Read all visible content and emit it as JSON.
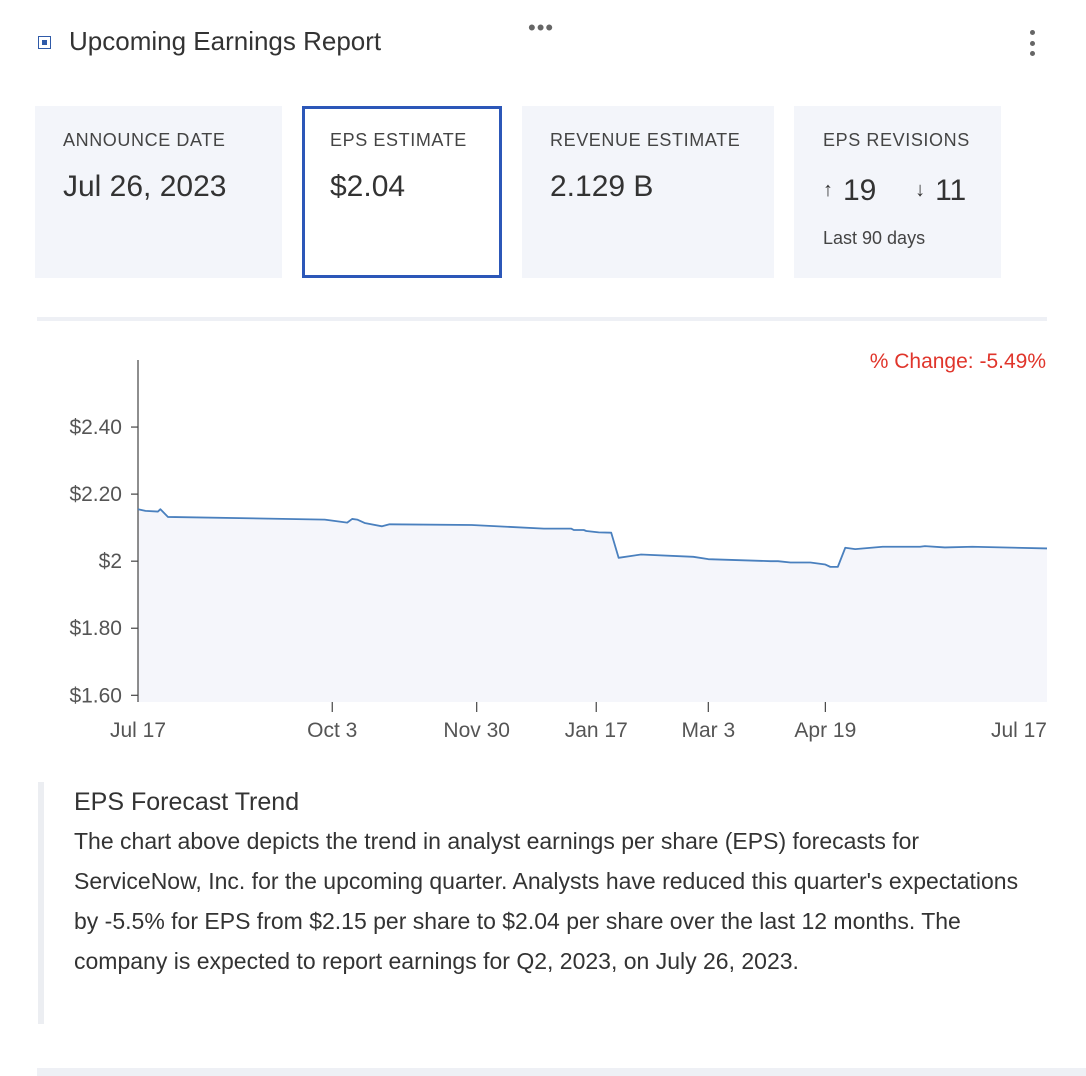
{
  "header": {
    "title": "Upcoming Earnings Report",
    "drag_glyph": "•••",
    "widget_icon": "widget-icon",
    "menu_icon": "kebab-menu-icon"
  },
  "cards": {
    "announce": {
      "label": "ANNOUNCE DATE",
      "value": "Jul 26, 2023"
    },
    "eps": {
      "label": "EPS ESTIMATE",
      "value": "$2.04"
    },
    "revenue": {
      "label": "REVENUE ESTIMATE",
      "value": "2.129 B"
    },
    "revisions": {
      "label": "EPS REVISIONS",
      "up_arrow": "↑",
      "up_count": "19",
      "down_arrow": "↓",
      "down_count": "11",
      "sub": "Last 90 days"
    }
  },
  "colors": {
    "accent_border": "#2c57b8",
    "line": "#4a80be",
    "area": "#f5f6fb",
    "negative": "#e0352b"
  },
  "chart_data": {
    "type": "area",
    "pct_change_label": "% Change: -5.49%",
    "y_ticks": [
      "$2.40",
      "$2.20",
      "$2",
      "$1.80",
      "$1.60"
    ],
    "y_tick_values": [
      2.4,
      2.2,
      2.0,
      1.8,
      1.6
    ],
    "ylim": [
      1.58,
      2.6
    ],
    "x_ticks": [
      {
        "label": "Jul 17",
        "date": "2022-07-17"
      },
      {
        "label": "Oct 3",
        "date": "2022-10-03"
      },
      {
        "label": "Nov 30",
        "date": "2022-11-30"
      },
      {
        "label": "Jan 17",
        "date": "2023-01-17"
      },
      {
        "label": "Mar 3",
        "date": "2023-03-03"
      },
      {
        "label": "Apr 19",
        "date": "2023-04-19"
      },
      {
        "label": "Jul 17",
        "date": "2023-07-17"
      }
    ],
    "x_range": [
      "2022-07-17",
      "2023-07-17"
    ],
    "series": [
      {
        "points": [
          [
            "2022-07-17",
            2.155
          ],
          [
            "2022-07-20",
            2.15
          ],
          [
            "2022-07-25",
            2.148
          ],
          [
            "2022-07-26",
            2.155
          ],
          [
            "2022-07-29",
            2.132
          ],
          [
            "2022-09-30",
            2.124
          ],
          [
            "2022-10-09",
            2.115
          ],
          [
            "2022-10-11",
            2.126
          ],
          [
            "2022-10-13",
            2.124
          ],
          [
            "2022-10-16",
            2.114
          ],
          [
            "2022-10-23",
            2.104
          ],
          [
            "2022-10-26",
            2.11
          ],
          [
            "2022-11-28",
            2.108
          ],
          [
            "2022-12-27",
            2.097
          ],
          [
            "2023-01-07",
            2.097
          ],
          [
            "2023-01-08",
            2.093
          ],
          [
            "2023-01-12",
            2.093
          ],
          [
            "2023-01-13",
            2.09
          ],
          [
            "2023-01-18",
            2.086
          ],
          [
            "2023-01-23",
            2.085
          ],
          [
            "2023-01-26",
            2.01
          ],
          [
            "2023-02-04",
            2.02
          ],
          [
            "2023-02-25",
            2.013
          ],
          [
            "2023-03-03",
            2.006
          ],
          [
            "2023-03-28",
            2.0
          ],
          [
            "2023-03-31",
            2.0
          ],
          [
            "2023-04-05",
            1.996
          ],
          [
            "2023-04-13",
            1.996
          ],
          [
            "2023-04-19",
            1.99
          ],
          [
            "2023-04-21",
            1.983
          ],
          [
            "2023-04-24",
            1.983
          ],
          [
            "2023-04-27",
            2.04
          ],
          [
            "2023-05-01",
            2.036
          ],
          [
            "2023-05-12",
            2.043
          ],
          [
            "2023-05-27",
            2.043
          ],
          [
            "2023-05-29",
            2.045
          ],
          [
            "2023-06-06",
            2.041
          ],
          [
            "2023-06-17",
            2.043
          ],
          [
            "2023-07-17",
            2.038
          ]
        ]
      }
    ]
  },
  "note": {
    "title": "EPS Forecast Trend",
    "body": "The chart above depicts the trend in analyst earnings per share (EPS) forecasts for ServiceNow, Inc. for the upcoming quarter. Analysts have reduced this quarter's expectations by -5.5% for EPS from $2.15 per share to $2.04 per share over the last 12 months. The company is expected to report earnings for Q2, 2023, on July 26, 2023."
  }
}
